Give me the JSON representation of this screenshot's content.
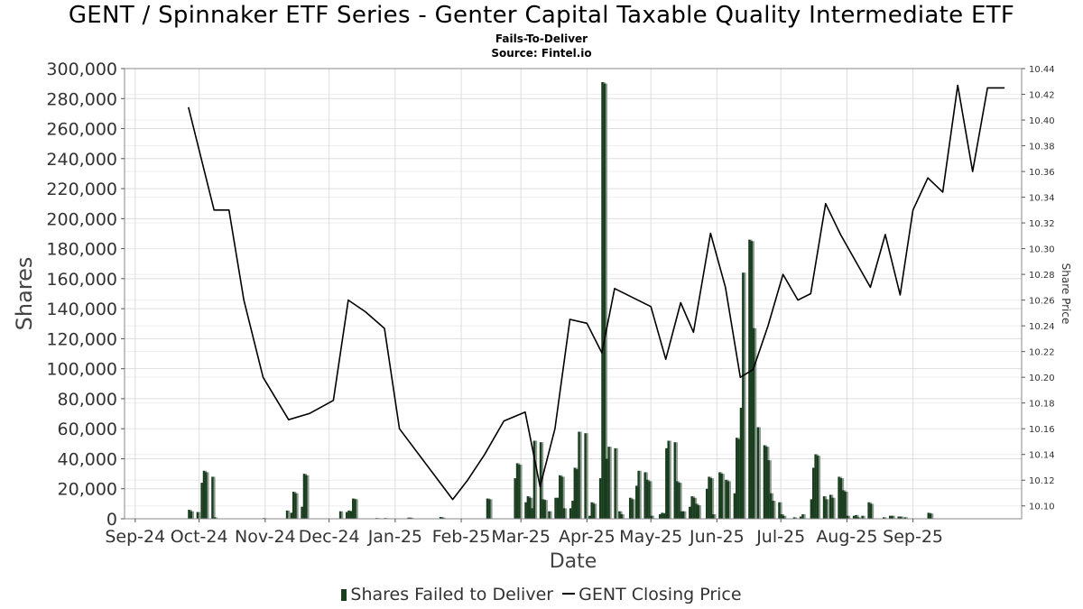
{
  "title": "GENT / Spinnaker ETF Series - Genter Capital Taxable Quality Intermediate ETF",
  "subtitle": "Fails-To-Deliver",
  "source": "Source: Fintel.io",
  "legend": {
    "bars_label": "Shares Failed to Deliver",
    "line_label": "GENT Closing Price"
  },
  "colors": {
    "bar": "#1a3d1f",
    "bar_shadow": "#8a9a8c",
    "line": "#000000",
    "grid": "#dddddd"
  },
  "chart_data": {
    "type": "bar+line",
    "xlabel": "Date",
    "ylabel": "Shares",
    "y2label": "Share Price",
    "x_ticks": [
      "Sep-24",
      "Oct-24",
      "Nov-24",
      "Dec-24",
      "Jan-25",
      "Feb-25",
      "Mar-25",
      "Apr-25",
      "May-25",
      "Jun-25",
      "Jul-25",
      "Aug-25",
      "Sep-25"
    ],
    "ylim": [
      0,
      300000
    ],
    "y_ticks": [
      0,
      20000,
      40000,
      60000,
      80000,
      100000,
      120000,
      140000,
      160000,
      180000,
      200000,
      220000,
      240000,
      260000,
      280000,
      300000
    ],
    "y_tick_labels": [
      "0",
      "20,000",
      "40,000",
      "60,000",
      "80,000",
      "100,000",
      "120,000",
      "140,000",
      "160,000",
      "180,000",
      "200,000",
      "220,000",
      "240,000",
      "260,000",
      "280,000",
      "300,000"
    ],
    "y2lim": [
      10.09,
      10.44
    ],
    "y2_ticks": [
      10.1,
      10.12,
      10.14,
      10.16,
      10.18,
      10.2,
      10.22,
      10.24,
      10.26,
      10.28,
      10.3,
      10.32,
      10.34,
      10.36,
      10.38,
      10.4,
      10.42,
      10.44
    ],
    "y2_tick_labels": [
      "10.10",
      "10.12",
      "10.14",
      "10.16",
      "10.18",
      "10.20",
      "10.22",
      "10.24",
      "10.26",
      "10.28",
      "10.30",
      "10.32",
      "10.34",
      "10.36",
      "10.38",
      "10.40",
      "10.42",
      "10.44"
    ],
    "grid": true,
    "legend_position": "bottom",
    "bars": [
      {
        "date": "2024-09-26",
        "value": 6000
      },
      {
        "date": "2024-09-27",
        "value": 5000
      },
      {
        "date": "2024-09-30",
        "value": 4500
      },
      {
        "date": "2024-10-02",
        "value": 24000
      },
      {
        "date": "2024-10-03",
        "value": 32000
      },
      {
        "date": "2024-10-04",
        "value": 31000
      },
      {
        "date": "2024-10-07",
        "value": 28000
      },
      {
        "date": "2024-10-08",
        "value": 1000
      },
      {
        "date": "2024-10-31",
        "value": 500
      },
      {
        "date": "2024-11-11",
        "value": 5500
      },
      {
        "date": "2024-11-13",
        "value": 4000
      },
      {
        "date": "2024-11-14",
        "value": 18000
      },
      {
        "date": "2024-11-15",
        "value": 17000
      },
      {
        "date": "2024-11-18",
        "value": 8000
      },
      {
        "date": "2024-11-19",
        "value": 30000
      },
      {
        "date": "2024-11-20",
        "value": 29000
      },
      {
        "date": "2024-12-06",
        "value": 5000
      },
      {
        "date": "2024-12-09",
        "value": 4500
      },
      {
        "date": "2024-12-10",
        "value": 5500
      },
      {
        "date": "2024-12-11",
        "value": 5000
      },
      {
        "date": "2024-12-12",
        "value": 13500
      },
      {
        "date": "2024-12-13",
        "value": 13000
      },
      {
        "date": "2024-12-23",
        "value": 500
      },
      {
        "date": "2024-12-27",
        "value": 500
      },
      {
        "date": "2025-01-07",
        "value": 800
      },
      {
        "date": "2025-01-08",
        "value": 700
      },
      {
        "date": "2025-01-22",
        "value": 1200
      },
      {
        "date": "2025-01-23",
        "value": 800
      },
      {
        "date": "2025-02-13",
        "value": 13500
      },
      {
        "date": "2025-02-14",
        "value": 13000
      },
      {
        "date": "2025-02-26",
        "value": 27000
      },
      {
        "date": "2025-02-27",
        "value": 37000
      },
      {
        "date": "2025-02-28",
        "value": 36000
      },
      {
        "date": "2025-03-03",
        "value": 11000
      },
      {
        "date": "2025-03-04",
        "value": 15000
      },
      {
        "date": "2025-03-05",
        "value": 14000
      },
      {
        "date": "2025-03-06",
        "value": 7000
      },
      {
        "date": "2025-03-07",
        "value": 52000
      },
      {
        "date": "2025-03-10",
        "value": 51000
      },
      {
        "date": "2025-03-11",
        "value": 13000
      },
      {
        "date": "2025-03-12",
        "value": 12500
      },
      {
        "date": "2025-03-14",
        "value": 5000
      },
      {
        "date": "2025-03-17",
        "value": 14000
      },
      {
        "date": "2025-03-18",
        "value": 14000
      },
      {
        "date": "2025-03-19",
        "value": 29000
      },
      {
        "date": "2025-03-20",
        "value": 28000
      },
      {
        "date": "2025-03-21",
        "value": 7000
      },
      {
        "date": "2025-03-24",
        "value": 7000
      },
      {
        "date": "2025-03-25",
        "value": 12000
      },
      {
        "date": "2025-03-26",
        "value": 34000
      },
      {
        "date": "2025-03-27",
        "value": 33000
      },
      {
        "date": "2025-03-28",
        "value": 58000
      },
      {
        "date": "2025-03-31",
        "value": 57000
      },
      {
        "date": "2025-04-02",
        "value": 2000
      },
      {
        "date": "2025-04-03",
        "value": 11000
      },
      {
        "date": "2025-04-04",
        "value": 10000
      },
      {
        "date": "2025-04-07",
        "value": 27000
      },
      {
        "date": "2025-04-08",
        "value": 291000
      },
      {
        "date": "2025-04-09",
        "value": 290000
      },
      {
        "date": "2025-04-10",
        "value": 40000
      },
      {
        "date": "2025-04-11",
        "value": 48000
      },
      {
        "date": "2025-04-14",
        "value": 47000
      },
      {
        "date": "2025-04-16",
        "value": 5000
      },
      {
        "date": "2025-04-17",
        "value": 3000
      },
      {
        "date": "2025-04-21",
        "value": 14000
      },
      {
        "date": "2025-04-22",
        "value": 13000
      },
      {
        "date": "2025-04-24",
        "value": 22000
      },
      {
        "date": "2025-04-25",
        "value": 32000
      },
      {
        "date": "2025-04-28",
        "value": 31000
      },
      {
        "date": "2025-04-29",
        "value": 26000
      },
      {
        "date": "2025-04-30",
        "value": 25000
      },
      {
        "date": "2025-05-01",
        "value": 2000
      },
      {
        "date": "2025-05-05",
        "value": 3000
      },
      {
        "date": "2025-05-06",
        "value": 4000
      },
      {
        "date": "2025-05-07",
        "value": 3500
      },
      {
        "date": "2025-05-08",
        "value": 47000
      },
      {
        "date": "2025-05-09",
        "value": 52000
      },
      {
        "date": "2025-05-12",
        "value": 51000
      },
      {
        "date": "2025-05-13",
        "value": 25000
      },
      {
        "date": "2025-05-14",
        "value": 24000
      },
      {
        "date": "2025-05-15",
        "value": 5000
      },
      {
        "date": "2025-05-16",
        "value": 5000
      },
      {
        "date": "2025-05-19",
        "value": 8000
      },
      {
        "date": "2025-05-20",
        "value": 15000
      },
      {
        "date": "2025-05-21",
        "value": 14000
      },
      {
        "date": "2025-05-22",
        "value": 10000
      },
      {
        "date": "2025-05-23",
        "value": 9000
      },
      {
        "date": "2025-05-27",
        "value": 20000
      },
      {
        "date": "2025-05-28",
        "value": 28000
      },
      {
        "date": "2025-05-29",
        "value": 27000
      },
      {
        "date": "2025-05-30",
        "value": 3000
      },
      {
        "date": "2025-06-02",
        "value": 31000
      },
      {
        "date": "2025-06-03",
        "value": 30000
      },
      {
        "date": "2025-06-05",
        "value": 26000
      },
      {
        "date": "2025-06-06",
        "value": 25000
      },
      {
        "date": "2025-06-09",
        "value": 17000
      },
      {
        "date": "2025-06-10",
        "value": 54000
      },
      {
        "date": "2025-06-11",
        "value": 53000
      },
      {
        "date": "2025-06-12",
        "value": 74000
      },
      {
        "date": "2025-06-13",
        "value": 164000
      },
      {
        "date": "2025-06-16",
        "value": 186000
      },
      {
        "date": "2025-06-17",
        "value": 185000
      },
      {
        "date": "2025-06-18",
        "value": 127000
      },
      {
        "date": "2025-06-20",
        "value": 61000
      },
      {
        "date": "2025-06-23",
        "value": 49000
      },
      {
        "date": "2025-06-24",
        "value": 48000
      },
      {
        "date": "2025-06-25",
        "value": 39000
      },
      {
        "date": "2025-06-26",
        "value": 17000
      },
      {
        "date": "2025-06-27",
        "value": 12000
      },
      {
        "date": "2025-06-30",
        "value": 11000
      },
      {
        "date": "2025-07-01",
        "value": 3000
      },
      {
        "date": "2025-07-02",
        "value": 2000
      },
      {
        "date": "2025-07-07",
        "value": 1000
      },
      {
        "date": "2025-07-10",
        "value": 1500
      },
      {
        "date": "2025-07-11",
        "value": 3000
      },
      {
        "date": "2025-07-15",
        "value": 13000
      },
      {
        "date": "2025-07-16",
        "value": 34000
      },
      {
        "date": "2025-07-17",
        "value": 43000
      },
      {
        "date": "2025-07-18",
        "value": 42000
      },
      {
        "date": "2025-07-21",
        "value": 15000
      },
      {
        "date": "2025-07-22",
        "value": 13000
      },
      {
        "date": "2025-07-24",
        "value": 16000
      },
      {
        "date": "2025-07-25",
        "value": 14000
      },
      {
        "date": "2025-07-28",
        "value": 28000
      },
      {
        "date": "2025-07-29",
        "value": 27000
      },
      {
        "date": "2025-07-30",
        "value": 19000
      },
      {
        "date": "2025-07-31",
        "value": 18000
      },
      {
        "date": "2025-08-01",
        "value": 2000
      },
      {
        "date": "2025-08-04",
        "value": 2000
      },
      {
        "date": "2025-08-05",
        "value": 2500
      },
      {
        "date": "2025-08-06",
        "value": 1000
      },
      {
        "date": "2025-08-08",
        "value": 2000
      },
      {
        "date": "2025-08-11",
        "value": 11000
      },
      {
        "date": "2025-08-12",
        "value": 10000
      },
      {
        "date": "2025-08-18",
        "value": 1000
      },
      {
        "date": "2025-08-21",
        "value": 2000
      },
      {
        "date": "2025-08-22",
        "value": 2000
      },
      {
        "date": "2025-08-25",
        "value": 1500
      },
      {
        "date": "2025-08-26",
        "value": 1500
      },
      {
        "date": "2025-08-28",
        "value": 1000
      },
      {
        "date": "2025-09-08",
        "value": 4000
      },
      {
        "date": "2025-09-09",
        "value": 3500
      }
    ],
    "price": [
      {
        "date": "2024-09-26",
        "value": 10.41
      },
      {
        "date": "2024-10-08",
        "value": 10.33
      },
      {
        "date": "2024-10-15",
        "value": 10.33
      },
      {
        "date": "2024-10-22",
        "value": 10.26
      },
      {
        "date": "2024-10-31",
        "value": 10.2
      },
      {
        "date": "2024-11-12",
        "value": 10.167
      },
      {
        "date": "2024-11-22",
        "value": 10.172
      },
      {
        "date": "2024-12-03",
        "value": 10.182
      },
      {
        "date": "2024-12-10",
        "value": 10.26
      },
      {
        "date": "2024-12-18",
        "value": 10.251
      },
      {
        "date": "2024-12-27",
        "value": 10.238
      },
      {
        "date": "2025-01-03",
        "value": 10.16
      },
      {
        "date": "2025-01-28",
        "value": 10.105
      },
      {
        "date": "2025-02-04",
        "value": 10.12
      },
      {
        "date": "2025-02-12",
        "value": 10.14
      },
      {
        "date": "2025-02-21",
        "value": 10.166
      },
      {
        "date": "2025-03-03",
        "value": 10.173
      },
      {
        "date": "2025-03-10",
        "value": 10.115
      },
      {
        "date": "2025-03-17",
        "value": 10.16
      },
      {
        "date": "2025-03-24",
        "value": 10.245
      },
      {
        "date": "2025-04-01",
        "value": 10.242
      },
      {
        "date": "2025-04-08",
        "value": 10.219
      },
      {
        "date": "2025-04-14",
        "value": 10.269
      },
      {
        "date": "2025-05-01",
        "value": 10.255
      },
      {
        "date": "2025-05-08",
        "value": 10.214
      },
      {
        "date": "2025-05-15",
        "value": 10.258
      },
      {
        "date": "2025-05-21",
        "value": 10.235
      },
      {
        "date": "2025-05-29",
        "value": 10.312
      },
      {
        "date": "2025-06-05",
        "value": 10.27
      },
      {
        "date": "2025-06-12",
        "value": 10.2
      },
      {
        "date": "2025-06-18",
        "value": 10.206
      },
      {
        "date": "2025-06-25",
        "value": 10.24
      },
      {
        "date": "2025-07-02",
        "value": 10.28
      },
      {
        "date": "2025-07-09",
        "value": 10.26
      },
      {
        "date": "2025-07-15",
        "value": 10.265
      },
      {
        "date": "2025-07-22",
        "value": 10.335
      },
      {
        "date": "2025-07-29",
        "value": 10.311
      },
      {
        "date": "2025-08-12",
        "value": 10.27
      },
      {
        "date": "2025-08-19",
        "value": 10.311
      },
      {
        "date": "2025-08-26",
        "value": 10.264
      },
      {
        "date": "2025-09-01",
        "value": 10.33
      },
      {
        "date": "2025-09-08",
        "value": 10.355
      },
      {
        "date": "2025-09-15",
        "value": 10.344
      },
      {
        "date": "2025-09-22",
        "value": 10.427
      },
      {
        "date": "2025-09-29",
        "value": 10.36
      },
      {
        "date": "2025-10-06",
        "value": 10.425
      },
      {
        "date": "2025-10-14",
        "value": 10.425
      }
    ]
  }
}
